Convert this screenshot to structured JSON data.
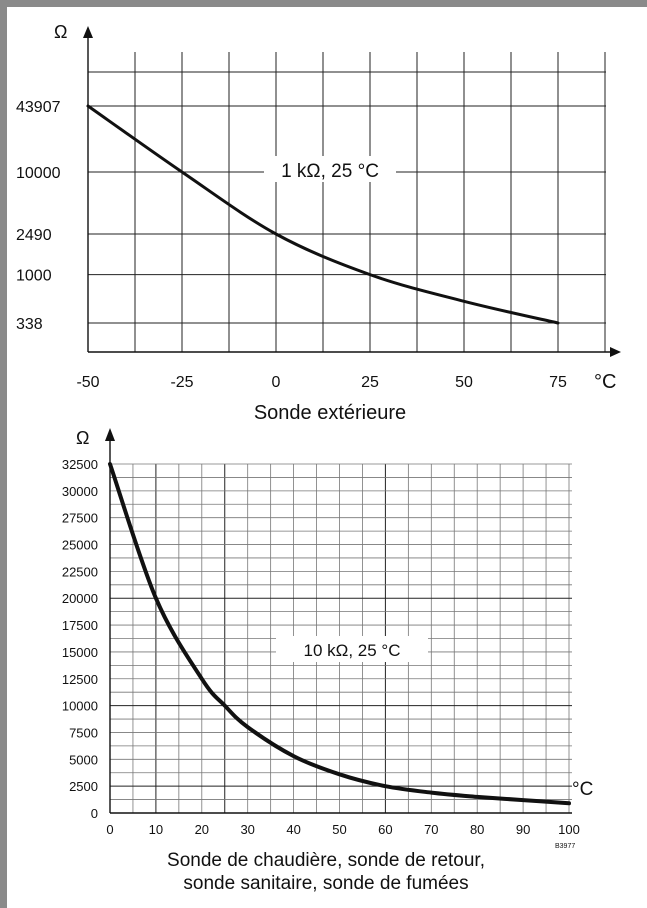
{
  "chart_data": [
    {
      "type": "line",
      "title": "Sonde extérieure",
      "annotation": "1 kΩ, 25 °C",
      "xlabel": "°C",
      "ylabel": "Ω",
      "yscale": "log",
      "xlim": [
        -50,
        75
      ],
      "x_ticks": [
        "-50",
        "-25",
        "0",
        "25",
        "50",
        "75"
      ],
      "y_ticks": [
        "43907",
        "10000",
        "2490",
        "1000",
        "338"
      ],
      "grid": true,
      "series": [
        {
          "x": [
            -50,
            -25,
            0,
            25,
            50,
            75
          ],
          "values": [
            43907,
            10000,
            2490,
            1000,
            550,
            338
          ]
        }
      ]
    },
    {
      "type": "line",
      "title": "Sonde de chaudière, sonde de retour,",
      "title_line2": "sonde sanitaire, sonde de fumées",
      "annotation": "10 kΩ, 25 °C",
      "xlabel": "°C",
      "ylabel": "Ω",
      "xlim": [
        0,
        100
      ],
      "ylim": [
        0,
        32500
      ],
      "x_ticks": [
        "0",
        "10",
        "20",
        "30",
        "40",
        "50",
        "60",
        "70",
        "80",
        "90",
        "100"
      ],
      "y_ticks": [
        "0",
        "2500",
        "5000",
        "7500",
        "10000",
        "12500",
        "15000",
        "17500",
        "20000",
        "22500",
        "25000",
        "27500",
        "30000",
        "32500"
      ],
      "grid": true,
      "series": [
        {
          "x": [
            0,
            10,
            20,
            25,
            30,
            40,
            50,
            60,
            70,
            80,
            90,
            100
          ],
          "values": [
            32500,
            20000,
            12500,
            10000,
            8000,
            5300,
            3600,
            2500,
            1900,
            1500,
            1200,
            900
          ]
        }
      ]
    }
  ],
  "figure_code": "B3977"
}
